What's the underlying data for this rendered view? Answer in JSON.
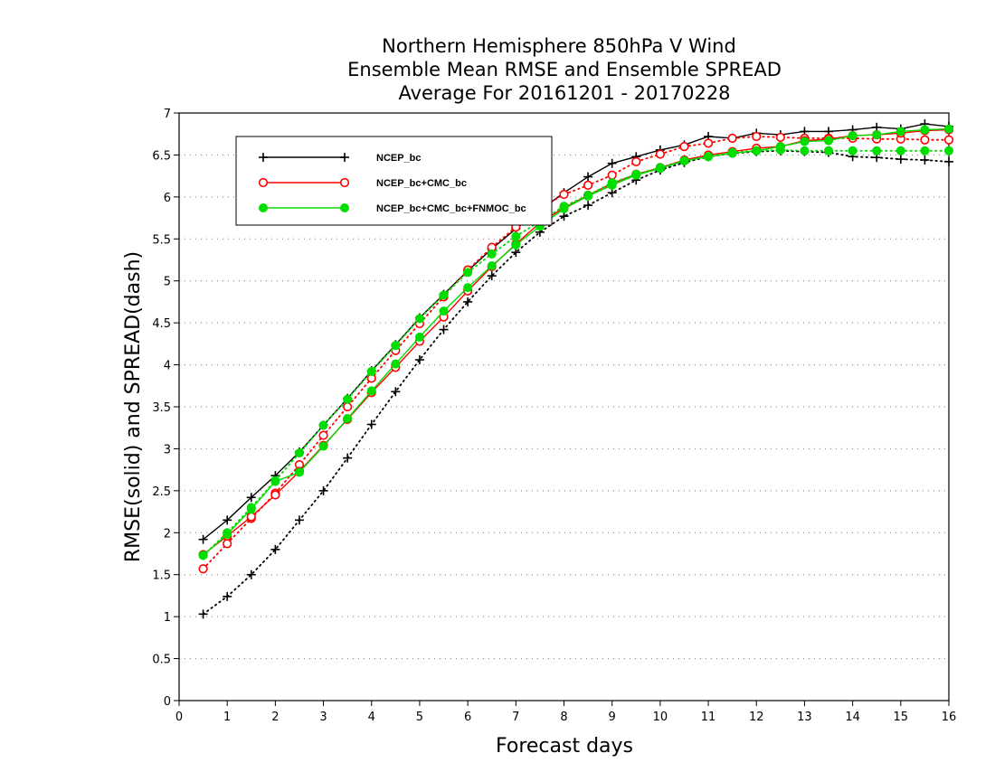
{
  "chart_data": {
    "type": "line",
    "title": [
      "Northern Hemisphere 850hPa V Wind",
      "Ensemble Mean RMSE and Ensemble SPREAD",
      "Average For 20161201 - 20170228"
    ],
    "xlabel": "Forecast days",
    "ylabel": "RMSE(solid) and SPREAD(dash)",
    "xlim": [
      0,
      16
    ],
    "ylim": [
      0,
      7
    ],
    "xticks": [
      0,
      1,
      2,
      3,
      4,
      5,
      6,
      7,
      8,
      9,
      10,
      11,
      12,
      13,
      14,
      15,
      16
    ],
    "yticks": [
      0,
      0.5,
      1,
      1.5,
      2,
      2.5,
      3,
      3.5,
      4,
      4.5,
      5,
      5.5,
      6,
      6.5,
      7
    ],
    "ytick_labels": [
      "0",
      "0.5",
      "1",
      "1.5",
      "2",
      "2.5",
      "3",
      "3.5",
      "4",
      "4.5",
      "5",
      "5.5",
      "6",
      "6.5",
      "7"
    ],
    "grid": "horizontal dotted",
    "legend_position": "top-left",
    "x": [
      0.5,
      1,
      1.5,
      2,
      2.5,
      3,
      3.5,
      4,
      4.5,
      5,
      5.5,
      6,
      6.5,
      7,
      7.5,
      8,
      8.5,
      9,
      9.5,
      10,
      10.5,
      11,
      11.5,
      12,
      12.5,
      13,
      13.5,
      14,
      14.5,
      15,
      15.5,
      16
    ],
    "series": [
      {
        "name": "NCEP_bc",
        "color": "#000000",
        "marker": "plus",
        "rmse": [
          1.92,
          2.15,
          2.42,
          2.68,
          2.96,
          3.28,
          3.6,
          3.93,
          4.24,
          4.56,
          4.84,
          5.12,
          5.38,
          5.62,
          5.84,
          6.05,
          6.24,
          6.4,
          6.48,
          6.56,
          6.62,
          6.72,
          6.7,
          6.76,
          6.74,
          6.78,
          6.78,
          6.8,
          6.83,
          6.81,
          6.87,
          6.84
        ],
        "spread": [
          1.03,
          1.24,
          1.5,
          1.8,
          2.15,
          2.5,
          2.89,
          3.29,
          3.68,
          4.06,
          4.42,
          4.75,
          5.06,
          5.34,
          5.58,
          5.77,
          5.9,
          6.05,
          6.2,
          6.32,
          6.41,
          6.48,
          6.52,
          6.54,
          6.55,
          6.54,
          6.53,
          6.48,
          6.47,
          6.45,
          6.44,
          6.42
        ]
      },
      {
        "name": "NCEP_bc+CMC_bc",
        "color": "#ff0000",
        "marker": "open-circle",
        "rmse": [
          1.74,
          1.96,
          2.19,
          2.45,
          2.73,
          3.04,
          3.35,
          3.67,
          3.97,
          4.28,
          4.57,
          4.88,
          5.17,
          5.44,
          5.69,
          5.87,
          6.02,
          6.16,
          6.27,
          6.35,
          6.44,
          6.5,
          6.54,
          6.58,
          6.6,
          6.67,
          6.69,
          6.73,
          6.74,
          6.76,
          6.79,
          6.8
        ],
        "spread": [
          1.57,
          1.87,
          2.17,
          2.47,
          2.81,
          3.16,
          3.5,
          3.84,
          4.17,
          4.49,
          4.81,
          5.13,
          5.4,
          5.64,
          5.86,
          6.03,
          6.14,
          6.26,
          6.42,
          6.51,
          6.6,
          6.64,
          6.7,
          6.72,
          6.71,
          6.7,
          6.7,
          6.7,
          6.69,
          6.69,
          6.68,
          6.68
        ]
      },
      {
        "name": "NCEP_bc+CMC_bc+FNMOC_bc",
        "color": "#00dd00",
        "marker": "filled-circle",
        "rmse": [
          1.73,
          1.98,
          2.28,
          2.61,
          2.72,
          3.03,
          3.36,
          3.69,
          4.01,
          4.33,
          4.64,
          4.92,
          5.18,
          5.43,
          5.65,
          5.86,
          6.01,
          6.14,
          6.26,
          6.34,
          6.43,
          6.48,
          6.52,
          6.55,
          6.6,
          6.66,
          6.67,
          6.73,
          6.74,
          6.78,
          6.8,
          6.81
        ],
        "spread": [
          1.73,
          2.0,
          2.3,
          2.62,
          2.95,
          3.28,
          3.59,
          3.92,
          4.23,
          4.55,
          4.83,
          5.1,
          5.32,
          5.53,
          5.71,
          5.89,
          6.02,
          6.17,
          6.27,
          6.35,
          6.43,
          6.48,
          6.53,
          6.55,
          6.56,
          6.55,
          6.55,
          6.55,
          6.55,
          6.55,
          6.55,
          6.55
        ]
      }
    ]
  }
}
